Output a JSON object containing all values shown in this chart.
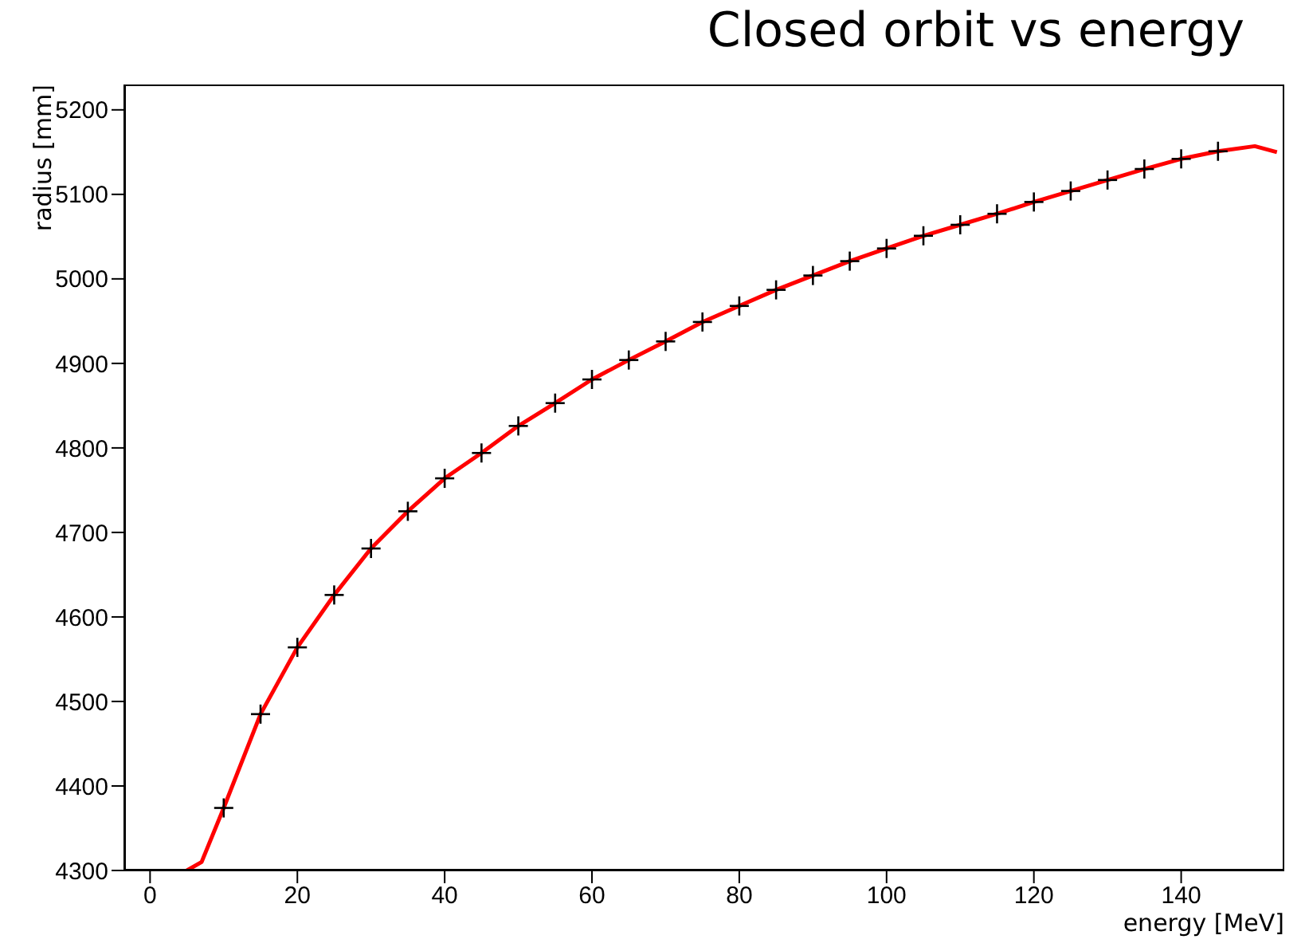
{
  "chart_data": {
    "type": "scatter",
    "title": "Closed orbit vs energy",
    "xlabel": "energy [MeV]",
    "ylabel": "radius [mm]",
    "xlim": [
      -3.5,
      154
    ],
    "ylim": [
      4300,
      5230
    ],
    "xticks": [
      0,
      20,
      40,
      60,
      80,
      100,
      120,
      140
    ],
    "yticks": [
      4300,
      4400,
      4500,
      4600,
      4700,
      4800,
      4900,
      5000,
      5100,
      5200
    ],
    "grid": false,
    "legend": false,
    "series": [
      {
        "type": "line",
        "color": "#ff0000",
        "marker": "none",
        "x": [
          5,
          7,
          10,
          15,
          20,
          25,
          30,
          35,
          40,
          45,
          50,
          55,
          60,
          65,
          70,
          75,
          80,
          85,
          90,
          95,
          100,
          105,
          110,
          115,
          120,
          125,
          130,
          135,
          140,
          145,
          150,
          153
        ],
        "values": [
          4300,
          4310,
          4374,
          4485,
          4564,
          4626,
          4681,
          4725,
          4764,
          4794,
          4826,
          4853,
          4881,
          4904,
          4926,
          4949,
          4968,
          4987,
          5004,
          5021,
          5036,
          5051,
          5064,
          5077,
          5091,
          5104,
          5117,
          5130,
          5142,
          5151,
          5157,
          5150
        ]
      },
      {
        "color": "#000000",
        "marker": "cross",
        "x": [
          10,
          15,
          20,
          25,
          30,
          35,
          40,
          45,
          50,
          55,
          60,
          65,
          70,
          75,
          80,
          85,
          90,
          95,
          100,
          105,
          110,
          115,
          120,
          125,
          130,
          135,
          140,
          145
        ],
        "values": [
          4374,
          4485,
          4564,
          4626,
          4681,
          4725,
          4764,
          4794,
          4826,
          4853,
          4881,
          4904,
          4926,
          4949,
          4968,
          4987,
          5004,
          5021,
          5036,
          5051,
          5064,
          5077,
          5091,
          5104,
          5117,
          5130,
          5142,
          5151
        ]
      }
    ]
  }
}
